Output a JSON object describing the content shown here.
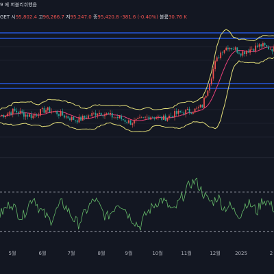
{
  "header": {
    "title_fragment": "9 에 퍼블리쉬했음",
    "symbol_fragment": "GET",
    "open_label": "시",
    "open_value": "95,802.4",
    "high_label": "고",
    "high_value": "96,266.7",
    "low_label": "저",
    "low_value": "95,247.0",
    "close_label": "종",
    "close_value": "95,420.8",
    "change": "-381.6 (-0.40%)",
    "volume_label": "볼륨",
    "volume_value": "30.76 K"
  },
  "colors": {
    "background": "#131722",
    "candle_up": "#ef5350",
    "candle_down": "#26a69a",
    "bb_outer": "#e5e07a",
    "bb_mid": "#ec407a",
    "level_lines": "#2962ff",
    "osc_line": "#66bb6a",
    "osc_band": "#b2b5be"
  },
  "chart_data": [
    {
      "type": "line",
      "title": "",
      "description_series": [
        "candles",
        "bollinger upper",
        "bollinger basis",
        "bollinger lower"
      ],
      "x_tick_labels": [
        "5월",
        "6월",
        "7월",
        "8월",
        "9월",
        "10월",
        "11월",
        "12월",
        "2025",
        "2"
      ],
      "horizontal_levels": [
        "upper channel top",
        "upper channel bottom",
        "lower channel top",
        "lower channel bottom"
      ],
      "price_profile": [
        0.3,
        0.32,
        0.34,
        0.33,
        0.31,
        0.3,
        0.33,
        0.35,
        0.34,
        0.32,
        0.3,
        0.28,
        0.27,
        0.29,
        0.31,
        0.33,
        0.32,
        0.3,
        0.29,
        0.27,
        0.25,
        0.26,
        0.28,
        0.3,
        0.29,
        0.28,
        0.3,
        0.32,
        0.33,
        0.34,
        0.35,
        0.38,
        0.55,
        0.72,
        0.82,
        0.85,
        0.83,
        0.8,
        0.82,
        0.84,
        0.86,
        0.84,
        0.83
      ]
    },
    {
      "type": "line",
      "title": "",
      "series": [
        {
          "values": [
            0.35,
            0.45,
            0.55,
            0.4,
            0.3,
            0.5,
            0.65,
            0.45,
            0.35,
            0.25,
            0.4,
            0.55,
            0.45,
            0.3,
            0.2,
            0.35,
            0.5,
            0.6,
            0.45,
            0.3,
            0.4,
            0.55,
            0.5,
            0.35,
            0.25,
            0.15,
            0.35,
            0.45,
            0.55,
            0.6,
            0.5,
            0.4,
            0.55,
            0.7,
            0.85,
            0.9,
            0.75,
            0.6,
            0.55,
            0.65,
            0.45,
            0.5,
            0.4,
            0.35,
            0.55,
            0.5,
            0.4,
            0.6,
            0.55,
            0.45
          ]
        }
      ],
      "band_levels": [
        "upper",
        "lower"
      ]
    }
  ]
}
